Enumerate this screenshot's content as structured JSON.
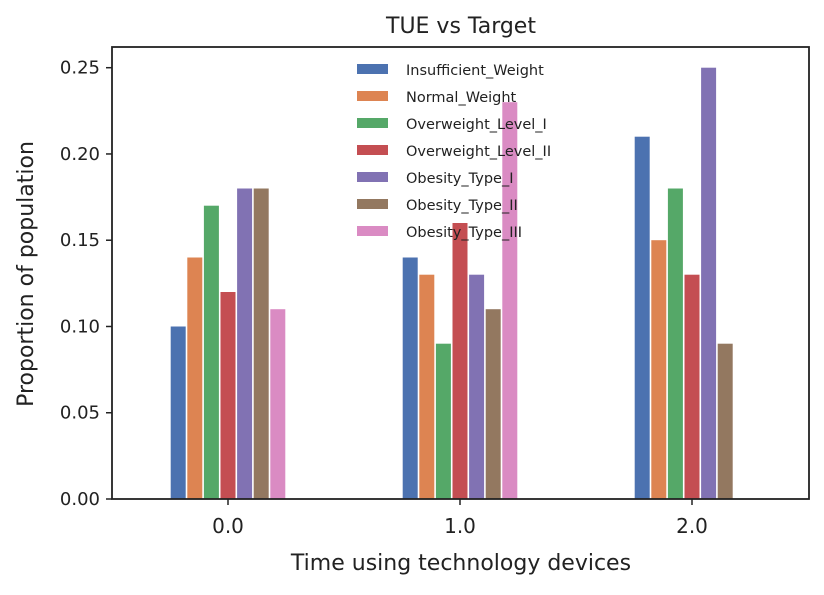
{
  "chart_data": {
    "type": "bar",
    "title": "TUE vs Target",
    "xlabel": "Time using technology devices",
    "ylabel": "Proportion of population",
    "categories": [
      "0.0",
      "1.0",
      "2.0"
    ],
    "ylim": [
      0,
      0.262
    ],
    "yticks": [
      "0.00",
      "0.05",
      "0.10",
      "0.15",
      "0.20",
      "0.25"
    ],
    "grid": false,
    "legend_position": "top-center",
    "series": [
      {
        "name": "Insufficient_Weight",
        "color": "#4C72B0",
        "values": [
          0.1,
          0.14,
          0.21
        ]
      },
      {
        "name": "Normal_Weight",
        "color": "#DD8452",
        "values": [
          0.14,
          0.13,
          0.15
        ]
      },
      {
        "name": "Overweight_Level_I",
        "color": "#55A868",
        "values": [
          0.17,
          0.09,
          0.18
        ]
      },
      {
        "name": "Overweight_Level_II",
        "color": "#C44E52",
        "values": [
          0.12,
          0.16,
          0.13
        ]
      },
      {
        "name": "Obesity_Type_I",
        "color": "#8172B3",
        "values": [
          0.18,
          0.13,
          0.25
        ]
      },
      {
        "name": "Obesity_Type_II",
        "color": "#937860",
        "values": [
          0.18,
          0.11,
          0.09
        ]
      },
      {
        "name": "Obesity_Type_III",
        "color": "#DA8BC3",
        "values": [
          0.11,
          0.23,
          null
        ]
      }
    ]
  }
}
